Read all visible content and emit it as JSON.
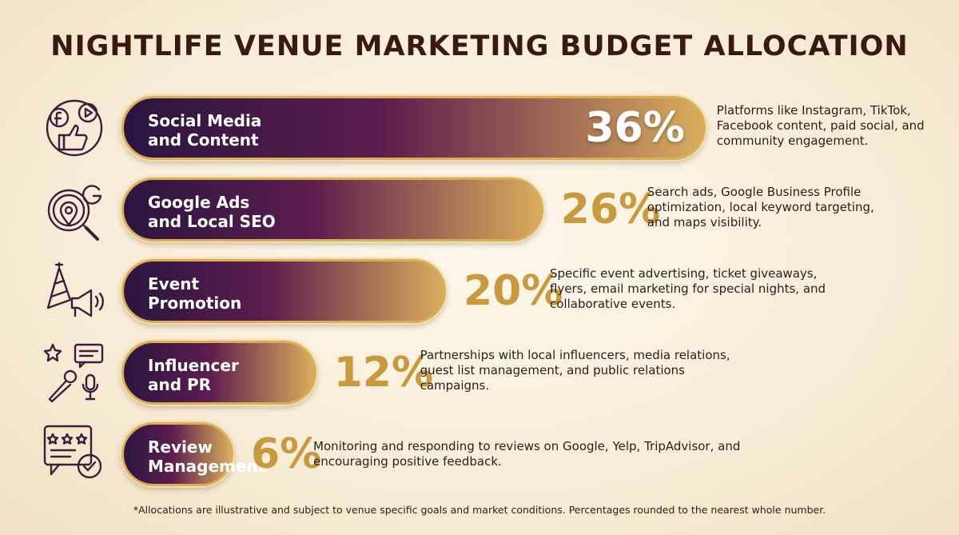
{
  "title": "NIGHTLIFE VENUE MARKETING BUDGET ALLOCATION",
  "footnote": "*Allocations are illustrative and subject to venue specific goals and market conditions. Percentages rounded to the nearest whole number.",
  "colors": {
    "title": "#3a1a10",
    "bar_start": "#2a1540",
    "bar_mid": "#5c1d4e",
    "bar_end": "#d8ad5c",
    "percent_outside": "#c9993e",
    "icon_stroke": "#3b1e3a"
  },
  "chart_data": {
    "type": "bar",
    "orientation": "horizontal",
    "title": "NIGHTLIFE VENUE MARKETING BUDGET ALLOCATION",
    "unit": "%",
    "categories": [
      "Social Media\nand Content",
      "Google Ads\nand Local SEO",
      "Event\nPromotion",
      "Influencer\nand PR",
      "Review\nManagement"
    ],
    "values": [
      36,
      26,
      20,
      12,
      6
    ],
    "value_labels": [
      "36%",
      "26%",
      "20%",
      "12%",
      "6%"
    ],
    "descriptions": [
      "Platforms like Instagram, TikTok, Facebook content, paid social, and community engagement.",
      "Search ads, Google Business Profile optimization, local keyword targeting, and maps visibility.",
      "Specific event advertising, ticket giveaways, flyers, email marketing for special nights, and collaborative events.",
      "Partnerships with local influencers, media relations, guest list management, and public relations campaigns.",
      "Monitoring and responding to reviews on Google, Yelp, TripAdvisor, and encouraging positive feedback."
    ],
    "icons": [
      "social-media-icon",
      "google-seo-icon",
      "event-promotion-icon",
      "influencer-pr-icon",
      "review-management-icon"
    ]
  }
}
